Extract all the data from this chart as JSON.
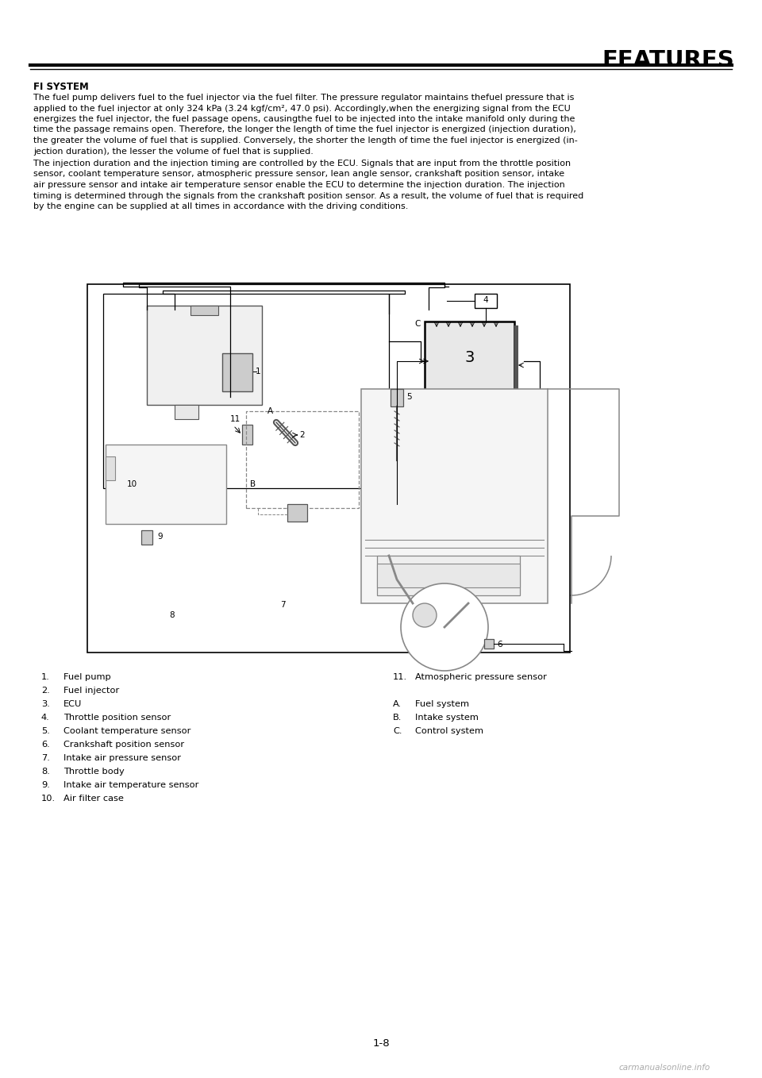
{
  "title": "FEATURES",
  "section_title": "FI SYSTEM",
  "paragraph1": "The fuel pump delivers fuel to the fuel injector via the fuel filter. The pressure regulator maintains thefuel pressure that is applied to the fuel injector at only 324 kPa (3.24 kgf/cm², 47.0 psi). Accordingly,when the energizing signal from the ECU energizes the fuel injector, the fuel passage opens, causingthe fuel to be injected into the intake manifold only during the time the passage remains open. Therefore, the longer the length of time the fuel injector is energized (injection duration), the greater the volume of fuel that is supplied. Conversely, the shorter the length of time the fuel injector is energized (in-jection duration), the lesser the volume of fuel that is supplied.",
  "paragraph2": "The injection duration and the injection timing are controlled by the ECU. Signals that are input from the throttle position sensor, coolant temperature sensor, atmospheric pressure sensor, lean angle sensor, crankshaft position sensor, intake air pressure sensor and intake air temperature sensor enable the ECU to determine the injection duration. The injection timing is determined through the signals from the crankshaft position sensor. As a result, the volume of fuel that is required by the engine can be supplied at all times in accordance with the driving conditions.",
  "items_left": [
    [
      "1.",
      "Fuel pump"
    ],
    [
      "2.",
      "Fuel injector"
    ],
    [
      "3.",
      "ECU"
    ],
    [
      "4.",
      "Throttle position sensor"
    ],
    [
      "5.",
      "Coolant temperature sensor"
    ],
    [
      "6.",
      "Crankshaft position sensor"
    ],
    [
      "7.",
      "Intake air pressure sensor"
    ],
    [
      "8.",
      "Throttle body"
    ],
    [
      "9.",
      "Intake air temperature sensor"
    ],
    [
      "10.",
      "Air filter case"
    ]
  ],
  "items_right": [
    [
      "11.",
      "Atmospheric pressure sensor"
    ],
    [
      "",
      ""
    ],
    [
      "A.",
      "Fuel system"
    ],
    [
      "B.",
      "Intake system"
    ],
    [
      "C.",
      "Control system"
    ]
  ],
  "page_number": "1-8",
  "watermark": "carmanualsonline.info",
  "bg_color": "#ffffff",
  "text_color": "#000000"
}
